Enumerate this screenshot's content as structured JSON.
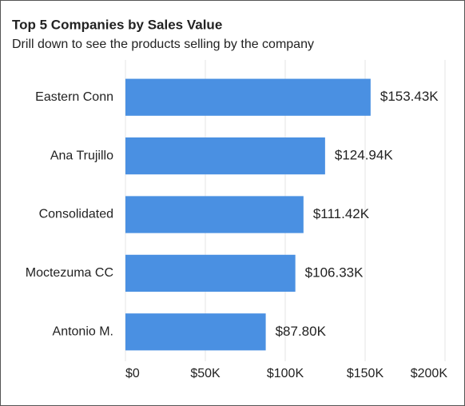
{
  "chart_data": {
    "type": "bar",
    "orientation": "horizontal",
    "title": "Top 5 Companies by Sales Value",
    "subtitle": "Drill down to see the products selling by the company",
    "categories": [
      "Eastern Conn",
      "Ana Trujillo",
      "Consolidated",
      "Moctezuma CC",
      "Antonio M."
    ],
    "values": [
      153430,
      124940,
      111420,
      106330,
      87800
    ],
    "value_labels": [
      "$153.43K",
      "$124.94K",
      "$111.42K",
      "$106.33K",
      "$87.80K"
    ],
    "color": "#4a90e2",
    "xlim": [
      0,
      200000
    ],
    "xticks": [
      {
        "value": 0,
        "label": "$0"
      },
      {
        "value": 50000,
        "label": "$50K"
      },
      {
        "value": 100000,
        "label": "$100K"
      },
      {
        "value": 150000,
        "label": "$150K"
      },
      {
        "value": 200000,
        "label": "$200K"
      }
    ],
    "grid": true
  }
}
